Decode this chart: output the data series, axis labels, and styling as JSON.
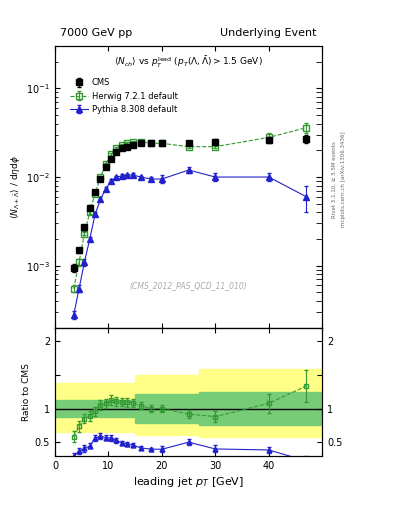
{
  "title_left": "7000 GeV pp",
  "title_right": "Underlying Event",
  "watermark": "(CMS_2012_PAS_QCD_11_010)",
  "right_label": "mcplots.cern.ch [arXiv:1306.3436]",
  "right_label2": "Rivet 3.1.10, ≥ 3.5M events",
  "ylabel_main": "⟨ N_{Λ+Λ̅} ⟩ / dηdϕ",
  "ylabel_ratio": "Ratio to CMS",
  "ylim_main": [
    0.0002,
    0.3
  ],
  "ylim_ratio": [
    0.3,
    2.2
  ],
  "xlim": [
    0,
    50
  ],
  "cms_x": [
    3.5,
    4.5,
    5.5,
    6.5,
    7.5,
    8.5,
    9.5,
    10.5,
    11.5,
    12.5,
    13.5,
    14.5,
    16.0,
    18.0,
    20.0,
    25.0,
    30.0,
    40.0,
    47.0
  ],
  "cms_y": [
    0.00095,
    0.0015,
    0.0027,
    0.0045,
    0.0068,
    0.0095,
    0.013,
    0.016,
    0.019,
    0.021,
    0.022,
    0.023,
    0.024,
    0.024,
    0.024,
    0.024,
    0.025,
    0.026,
    0.027
  ],
  "cms_yerr": [
    0.0001,
    0.0001,
    0.0002,
    0.0003,
    0.0004,
    0.0005,
    0.0007,
    0.001,
    0.001,
    0.001,
    0.001,
    0.001,
    0.001,
    0.001,
    0.001,
    0.001,
    0.002,
    0.002,
    0.003
  ],
  "herwig_x": [
    3.5,
    4.5,
    5.5,
    6.5,
    7.5,
    8.5,
    9.5,
    10.5,
    11.5,
    12.5,
    13.5,
    14.5,
    16.0,
    18.0,
    20.0,
    25.0,
    30.0,
    40.0,
    47.0
  ],
  "herwig_y": [
    0.00055,
    0.0011,
    0.0023,
    0.004,
    0.0065,
    0.01,
    0.014,
    0.018,
    0.021,
    0.023,
    0.024,
    0.025,
    0.025,
    0.024,
    0.024,
    0.022,
    0.022,
    0.028,
    0.036
  ],
  "herwig_yerr": [
    5e-05,
    0.0001,
    0.0001,
    0.0002,
    0.0003,
    0.0004,
    0.0005,
    0.0006,
    0.0007,
    0.0007,
    0.0008,
    0.0008,
    0.0008,
    0.0008,
    0.001,
    0.001,
    0.001,
    0.003,
    0.005
  ],
  "pythia_x": [
    3.5,
    4.5,
    5.5,
    6.5,
    7.5,
    8.5,
    9.5,
    10.5,
    11.5,
    12.5,
    13.5,
    14.5,
    16.0,
    18.0,
    20.0,
    25.0,
    30.0,
    40.0,
    47.0
  ],
  "pythia_y": [
    0.00028,
    0.00055,
    0.0011,
    0.002,
    0.0038,
    0.0056,
    0.0074,
    0.009,
    0.01,
    0.0103,
    0.0105,
    0.0106,
    0.01,
    0.0095,
    0.0095,
    0.012,
    0.01,
    0.01,
    0.006
  ],
  "pythia_yerr": [
    3e-05,
    5e-05,
    0.0001,
    0.0001,
    0.0002,
    0.0003,
    0.0003,
    0.0004,
    0.0004,
    0.0004,
    0.0004,
    0.0004,
    0.0004,
    0.0004,
    0.001,
    0.001,
    0.001,
    0.001,
    0.002
  ],
  "cms_color": "#000000",
  "herwig_color": "#339933",
  "pythia_color": "#2222cc",
  "band_regions": [
    {
      "xmin": 0,
      "xmax": 15,
      "y_green_lo": 0.88,
      "y_green_hi": 1.12,
      "y_yellow_lo": 0.65,
      "y_yellow_hi": 1.38
    },
    {
      "xmin": 15,
      "xmax": 27,
      "y_green_lo": 0.78,
      "y_green_hi": 1.22,
      "y_yellow_lo": 0.6,
      "y_yellow_hi": 1.5
    },
    {
      "xmin": 27,
      "xmax": 50,
      "y_green_lo": 0.75,
      "y_green_hi": 1.25,
      "y_yellow_lo": 0.57,
      "y_yellow_hi": 1.58
    }
  ]
}
